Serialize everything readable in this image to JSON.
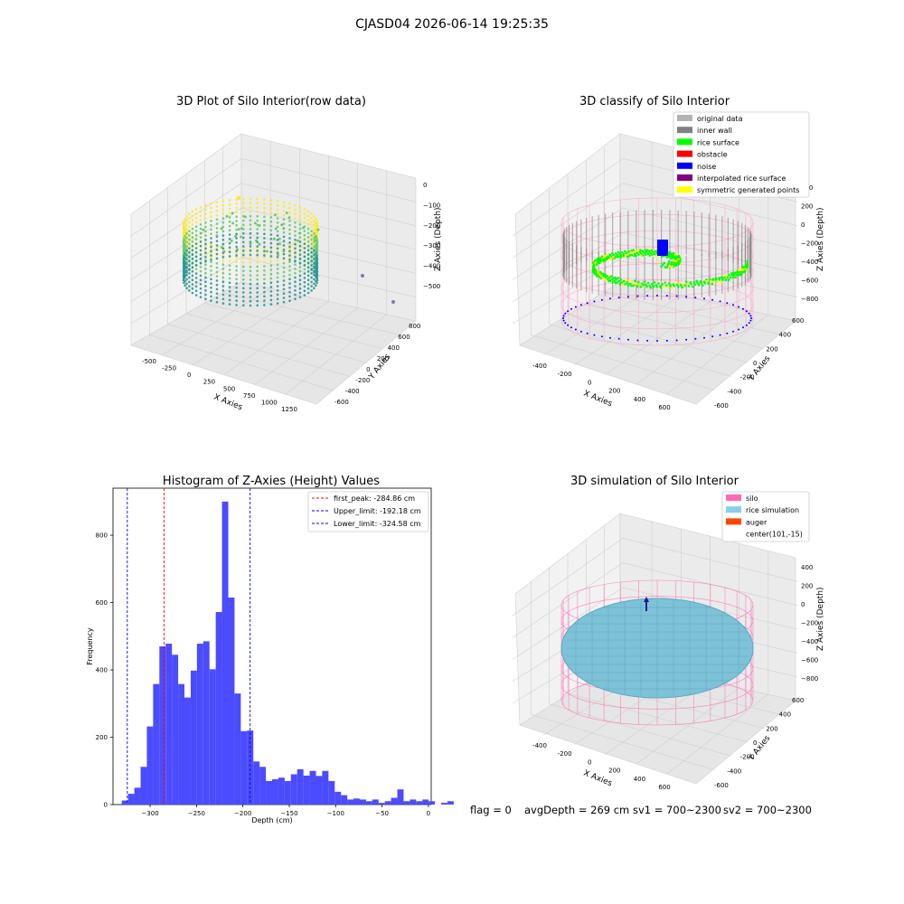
{
  "figure": {
    "suptitle": "CJASD04 2026-06-14 19:25:35",
    "footer": {
      "flag": "flag = 0",
      "avg_depth": "avgDepth = 269 cm",
      "sv1": "sv1 = 700~2300",
      "sv2": "sv2 = 700~2300"
    }
  },
  "panel1": {
    "title": "3D Plot of Silo Interior(row data)",
    "xlabel": "X Axies",
    "ylabel": "Y Axies",
    "zlabel": "Z Axies (Depth)",
    "x_ticks": [
      "-500",
      "-250",
      "0",
      "250",
      "500",
      "750",
      "1000",
      "1250"
    ],
    "y_ticks": [
      "-600",
      "-400",
      "-200",
      "0",
      "200",
      "400",
      "600",
      "800"
    ],
    "z_ticks": [
      "0",
      "−100",
      "−200",
      "−300",
      "−400",
      "−500"
    ],
    "colormap": [
      "#440154",
      "#21918c",
      "#5ec962",
      "#fde725"
    ]
  },
  "panel2": {
    "title": "3D classify of Silo Interior",
    "xlabel": "X Axies",
    "ylabel": "Y Axies",
    "zlabel": "Z Axies (Depth)",
    "x_ticks": [
      "-400",
      "-200",
      "0",
      "200",
      "400",
      "600"
    ],
    "y_ticks": [
      "-600",
      "-400",
      "-200",
      "0",
      "200",
      "400",
      "600"
    ],
    "z_ticks": [
      "400",
      "200",
      "0",
      "−200",
      "−400",
      "−600",
      "−800"
    ],
    "legend": [
      {
        "label": "original data",
        "color": "#b3b3b3"
      },
      {
        "label": "inner wall",
        "color": "#808080"
      },
      {
        "label": "rice surface",
        "color": "#00ff00"
      },
      {
        "label": "obstacle",
        "color": "#ff0000"
      },
      {
        "label": "noise",
        "color": "#0000ff"
      },
      {
        "label": "interpolated rice surface",
        "color": "#800080"
      },
      {
        "label": "symmetric generated points",
        "color": "#ffff00"
      }
    ]
  },
  "panel4": {
    "title": "3D simulation of Silo Interior",
    "xlabel": "X Axies",
    "ylabel": "Y Axies",
    "zlabel": "Z Axies (Depth)",
    "x_ticks": [
      "-400",
      "-200",
      "0",
      "200",
      "400",
      "600"
    ],
    "y_ticks": [
      "-600",
      "-400",
      "-200",
      "0",
      "200",
      "400",
      "600"
    ],
    "z_ticks": [
      "400",
      "200",
      "0",
      "−200",
      "−400",
      "−600",
      "−800"
    ],
    "legend": [
      {
        "label": "silo",
        "color": "#ff69b4"
      },
      {
        "label": "rice simulation",
        "color": "#87ceeb"
      },
      {
        "label": "auger",
        "color": "#ff4500"
      },
      {
        "label": "center(101,-15)",
        "color": ""
      }
    ]
  },
  "chart_data": {
    "type": "bar",
    "title": "Histogram of Z-Axies (Height) Values",
    "xlabel": "Depth (cm)",
    "ylabel": "Frequency",
    "xlim": [
      -340,
      3
    ],
    "ylim": [
      0,
      940
    ],
    "x_ticks": [
      -300,
      -250,
      -200,
      -150,
      -100,
      -50,
      0
    ],
    "y_ticks": [
      0,
      200,
      400,
      600,
      800
    ],
    "bar_color": "#4b4bff",
    "bin_width": 6.75,
    "bin_start": -330.5,
    "values": [
      12,
      32,
      50,
      112,
      232,
      358,
      470,
      478,
      445,
      358,
      318,
      398,
      478,
      485,
      402,
      572,
      900,
      615,
      330,
      218,
      220,
      128,
      112,
      70,
      75,
      80,
      70,
      90,
      105,
      86,
      100,
      85,
      100,
      70,
      38,
      28,
      15,
      18,
      15,
      10,
      15,
      5,
      10,
      20,
      45,
      10,
      15,
      10,
      15,
      10,
      0,
      5,
      10
    ],
    "vlines": [
      {
        "label": "first_peak: -284.86 cm",
        "x": -284.86,
        "color": "#ff0000"
      },
      {
        "label": "Upper_limit: -192.18 cm",
        "x": -192.18,
        "color": "#0000ff"
      },
      {
        "label": "Lower_limit: -324.58 cm",
        "x": -324.58,
        "color": "#0000ff"
      }
    ]
  }
}
